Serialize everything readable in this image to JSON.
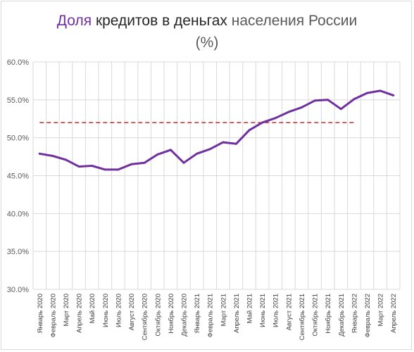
{
  "title": {
    "line1": [
      {
        "text": "Доля",
        "color": "#7030a0"
      },
      {
        "text": " кредитов в деньгах",
        "color": "#262626"
      },
      {
        "text": " населения России",
        "color": "#595959"
      }
    ],
    "line2": "(%)"
  },
  "chart_data": {
    "type": "line",
    "categories": [
      "Январь 2020",
      "Февраль 2020",
      "Март 2020",
      "Апрель 2020",
      "Май 2020",
      "Июнь 2020",
      "Июль 2020",
      "Август 2020",
      "Сентябрь 2020",
      "Октябрь 2020",
      "Ноябрь 2020",
      "Декабрь 2020",
      "Январь 2021",
      "Февраль 2021",
      "Март 2021",
      "Апрель 2021",
      "Май 2021",
      "Июнь 2021",
      "Июль 2021",
      "Август 2021",
      "Сентябрь 2021",
      "Октябрь 2021",
      "Ноябрь 2021",
      "Декабрь 2021",
      "Январь 2022",
      "Февраль 2022",
      "Март 2022",
      "Апрель 2022"
    ],
    "series": [
      {
        "values": [
          47.9,
          47.6,
          47.1,
          46.2,
          46.3,
          45.8,
          45.8,
          46.5,
          46.7,
          47.8,
          48.4,
          46.7,
          47.9,
          48.5,
          49.4,
          49.2,
          51.0,
          52.0,
          52.6,
          53.4,
          54.0,
          54.9,
          55.0,
          53.8,
          55.1,
          55.9,
          56.2,
          55.6
        ],
        "color": "#7030a0"
      }
    ],
    "reference_line": {
      "y": 52.0,
      "from_category": 0,
      "to_category": 24,
      "color": "#c00000",
      "style": "dashed"
    },
    "ylim": [
      30,
      60
    ],
    "yticks": [
      30,
      35,
      40,
      45,
      50,
      55,
      60
    ],
    "ytick_labels": [
      "30.0%",
      "35.0%",
      "40.0%",
      "45.0%",
      "50.0%",
      "55.0%",
      "60.0%"
    ],
    "xlabel": "",
    "ylabel": "",
    "grid": {
      "horizontal": true,
      "vertical": true,
      "color": "#d9d9d9"
    },
    "legend": "none"
  }
}
